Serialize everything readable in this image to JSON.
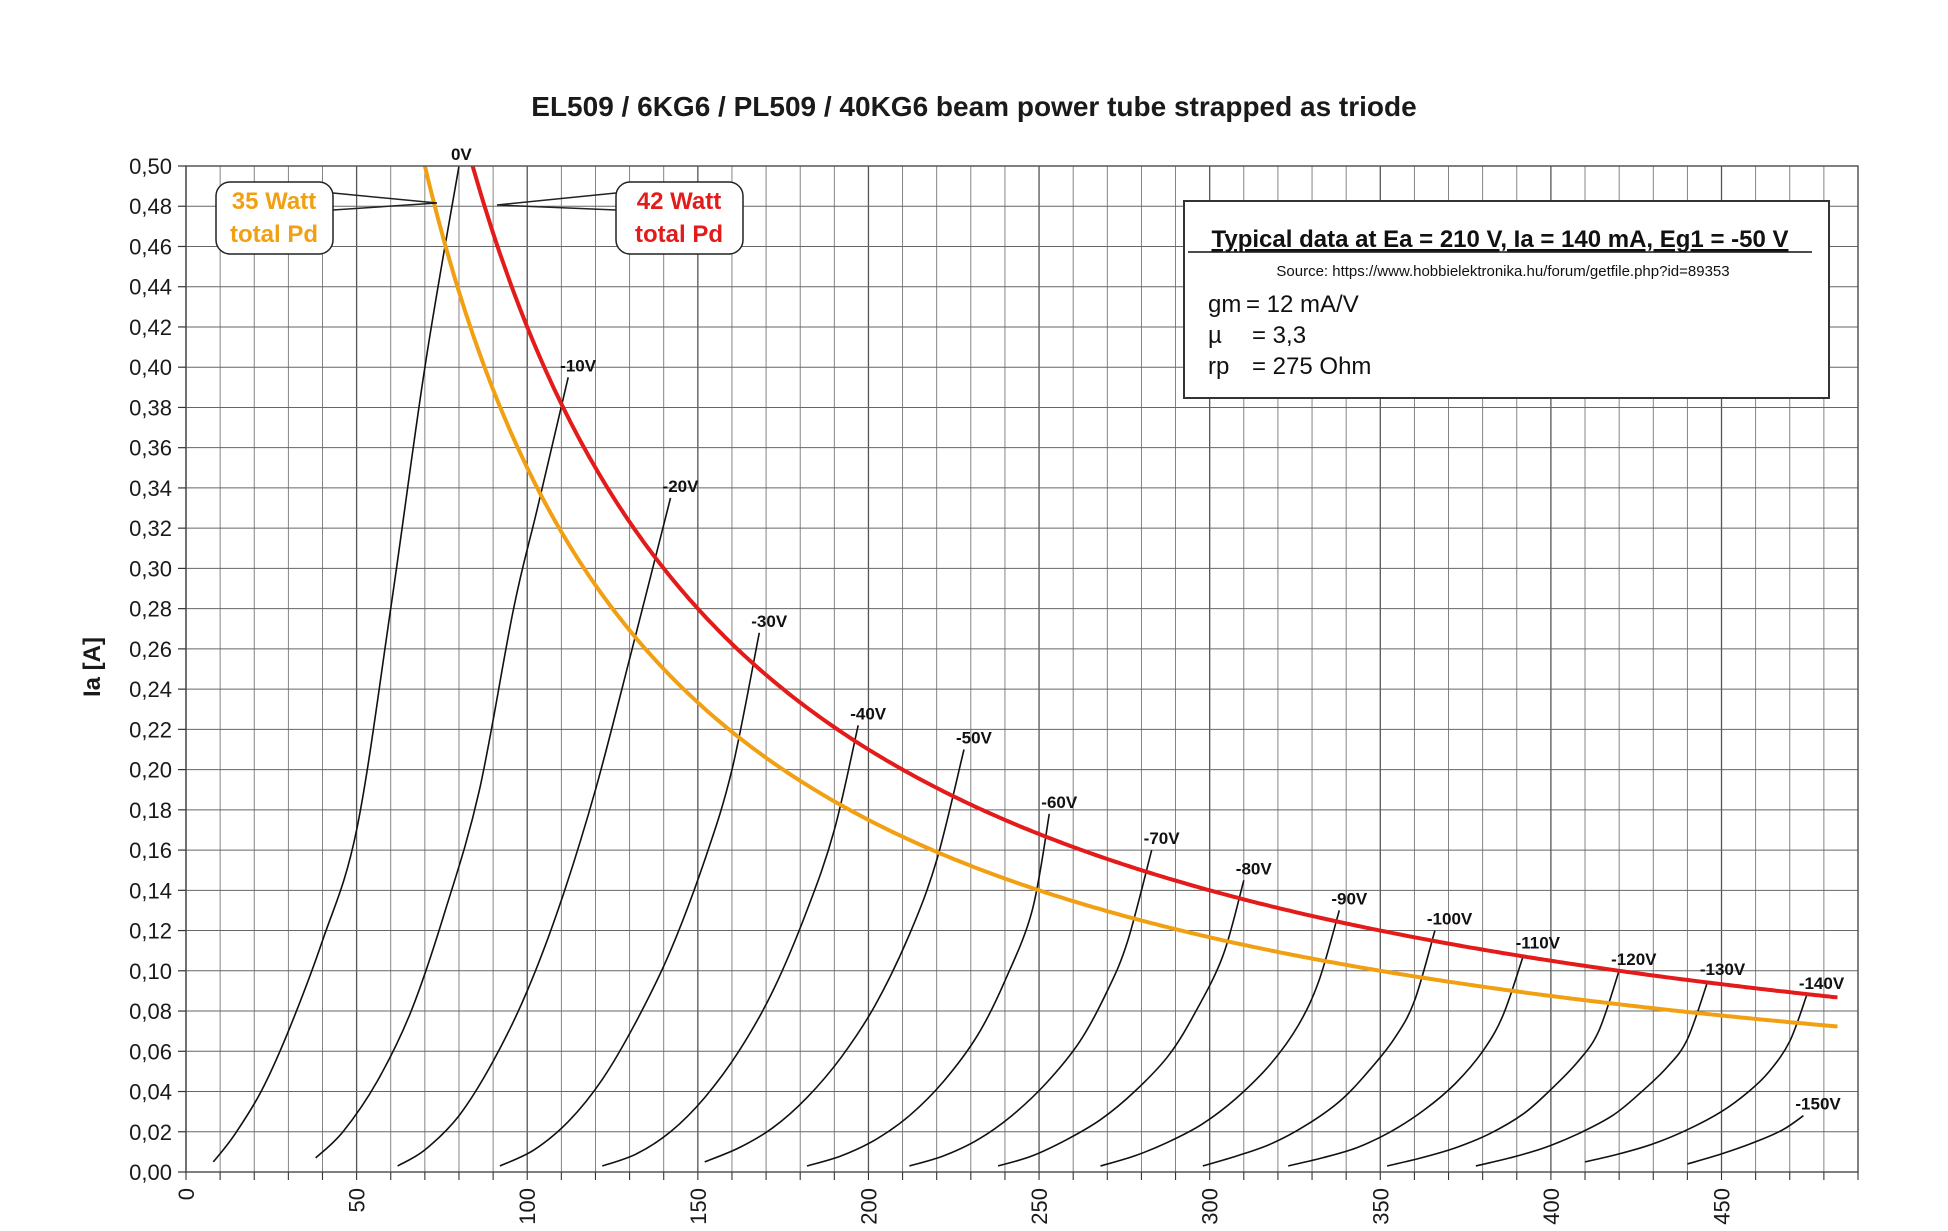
{
  "chart_data": {
    "type": "line",
    "title": "EL509 / 6KG6 / PL509 / 40KG6 beam power tube strapped as triode",
    "ylabel": "Ia [A]",
    "xlabel": "",
    "xlim": [
      0,
      490
    ],
    "ylim": [
      0,
      0.5
    ],
    "x_major_ticks": [
      0,
      50,
      100,
      150,
      200,
      250,
      300,
      350,
      400,
      450
    ],
    "y_ticks": [
      "0,00",
      "0,02",
      "0,04",
      "0,06",
      "0,08",
      "0,10",
      "0,12",
      "0,14",
      "0,16",
      "0,18",
      "0,20",
      "0,22",
      "0,24",
      "0,26",
      "0,28",
      "0,30",
      "0,32",
      "0,34",
      "0,36",
      "0,38",
      "0,40",
      "0,42",
      "0,44",
      "0,46",
      "0,48",
      "0,50"
    ],
    "grid": true,
    "grid_curves": [
      {
        "label": "0V",
        "x": [
          8,
          14,
          22,
          30,
          40,
          50,
          60,
          70,
          80
        ],
        "y": [
          0.005,
          0.018,
          0.04,
          0.07,
          0.115,
          0.17,
          0.28,
          0.4,
          0.5
        ]
      },
      {
        "label": "-10V",
        "x": [
          38,
          46,
          56,
          66,
          76,
          86,
          96,
          103,
          112
        ],
        "y": [
          0.007,
          0.02,
          0.045,
          0.08,
          0.13,
          0.19,
          0.28,
          0.33,
          0.395
        ]
      },
      {
        "label": "-20V",
        "x": [
          62,
          70,
          80,
          90,
          100,
          110,
          120,
          130,
          142
        ],
        "y": [
          0.003,
          0.011,
          0.028,
          0.055,
          0.09,
          0.135,
          0.19,
          0.255,
          0.335
        ]
      },
      {
        "label": "-30V",
        "x": [
          92,
          102,
          112,
          122,
          132,
          142,
          152,
          160,
          168
        ],
        "y": [
          0.003,
          0.011,
          0.025,
          0.046,
          0.075,
          0.11,
          0.155,
          0.2,
          0.268
        ]
      },
      {
        "label": "-40V",
        "x": [
          122,
          132,
          142,
          152,
          162,
          172,
          182,
          190,
          197
        ],
        "y": [
          0.003,
          0.009,
          0.02,
          0.037,
          0.06,
          0.09,
          0.13,
          0.17,
          0.222
        ]
      },
      {
        "label": "-50V",
        "x": [
          152,
          162,
          172,
          182,
          192,
          202,
          212,
          220,
          228
        ],
        "y": [
          0.005,
          0.012,
          0.022,
          0.037,
          0.057,
          0.083,
          0.118,
          0.155,
          0.21
        ]
      },
      {
        "label": "-60V",
        "x": [
          182,
          192,
          202,
          212,
          222,
          232,
          240,
          248,
          253
        ],
        "y": [
          0.003,
          0.008,
          0.016,
          0.028,
          0.045,
          0.068,
          0.095,
          0.13,
          0.178
        ]
      },
      {
        "label": "-70V",
        "x": [
          212,
          222,
          232,
          242,
          252,
          262,
          270,
          276,
          283
        ],
        "y": [
          0.003,
          0.008,
          0.016,
          0.028,
          0.044,
          0.065,
          0.09,
          0.115,
          0.16
        ]
      },
      {
        "label": "-80V",
        "x": [
          238,
          248,
          258,
          268,
          278,
          288,
          296,
          304,
          310
        ],
        "y": [
          0.003,
          0.008,
          0.016,
          0.026,
          0.04,
          0.058,
          0.08,
          0.108,
          0.145
        ]
      },
      {
        "label": "-90V",
        "x": [
          268,
          278,
          288,
          298,
          308,
          318,
          326,
          332,
          338
        ],
        "y": [
          0.003,
          0.008,
          0.015,
          0.024,
          0.037,
          0.054,
          0.073,
          0.095,
          0.13
        ]
      },
      {
        "label": "-100V",
        "x": [
          298,
          308,
          318,
          328,
          338,
          346,
          354,
          360,
          366
        ],
        "y": [
          0.003,
          0.008,
          0.014,
          0.023,
          0.035,
          0.049,
          0.066,
          0.085,
          0.12
        ]
      },
      {
        "label": "-110V",
        "x": [
          323,
          333,
          343,
          353,
          363,
          372,
          380,
          386,
          392
        ],
        "y": [
          0.003,
          0.007,
          0.012,
          0.02,
          0.031,
          0.044,
          0.06,
          0.078,
          0.108
        ]
      },
      {
        "label": "-120V",
        "x": [
          352,
          362,
          372,
          382,
          392,
          400,
          408,
          414,
          420
        ],
        "y": [
          0.003,
          0.007,
          0.012,
          0.019,
          0.029,
          0.041,
          0.055,
          0.07,
          0.1
        ]
      },
      {
        "label": "-130V",
        "x": [
          378,
          388,
          398,
          408,
          418,
          426,
          434,
          440,
          446
        ],
        "y": [
          0.003,
          0.007,
          0.012,
          0.019,
          0.028,
          0.039,
          0.052,
          0.066,
          0.095
        ]
      },
      {
        "label": "-140V",
        "x": [
          410,
          420,
          430,
          440,
          450,
          458,
          464,
          470,
          475
        ],
        "y": [
          0.005,
          0.009,
          0.014,
          0.021,
          0.03,
          0.04,
          0.05,
          0.065,
          0.088
        ]
      },
      {
        "label": "-150V",
        "x": [
          440,
          450,
          460,
          468,
          474
        ],
        "y": [
          0.004,
          0.009,
          0.015,
          0.021,
          0.028
        ]
      }
    ],
    "power_curves": [
      {
        "label_line1": "35 Watt",
        "label_line2": "total Pd",
        "color": "#f2a013",
        "watts": 35,
        "x_from": 70,
        "x_to": 485
      },
      {
        "label_line1": "42 Watt",
        "label_line2": "total Pd",
        "color": "#e31b1b",
        "watts": 42,
        "x_from": 84,
        "x_to": 485
      }
    ],
    "typical_data": {
      "heading": "Typical data at Ea = 210 V, Ia = 140 mA, Eg1 = -50 V",
      "source": "Source: https://www.hobbielektronika.hu/forum/getfile.php?id=89353",
      "lines": [
        {
          "name": "gm",
          "value": "= 12 mA/V"
        },
        {
          "name": "µ",
          "value": "= 3,3"
        },
        {
          "name": "rp",
          "value": "= 275 Ohm"
        }
      ]
    }
  }
}
